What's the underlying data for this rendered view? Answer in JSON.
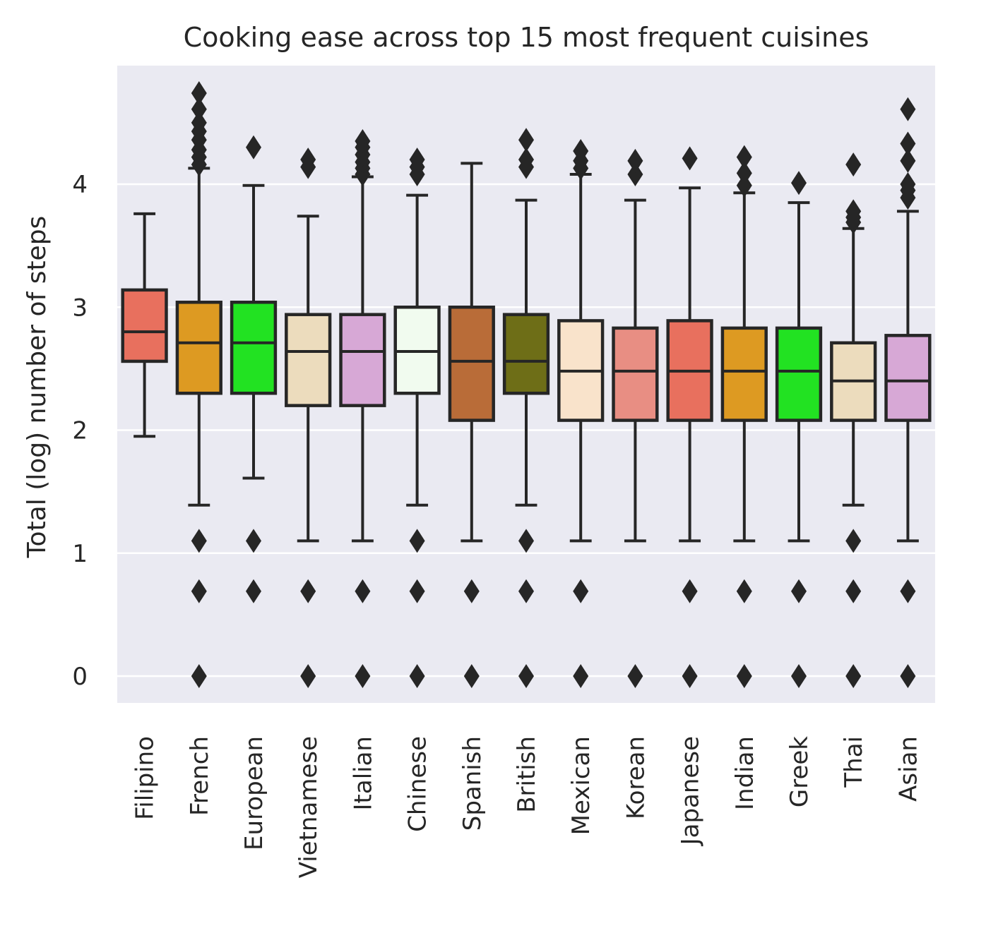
{
  "chart_data": {
    "type": "box",
    "title": "Cooking ease across top 15 most frequent cuisines",
    "xlabel": "",
    "ylabel": "Total (log) number of steps",
    "ylim": [
      -0.22,
      4.95
    ],
    "yticks": [
      0,
      1,
      2,
      3,
      4
    ],
    "grid": true,
    "legend": "none",
    "categories": [
      "Filipino",
      "French",
      "European",
      "Vietnamese",
      "Italian",
      "Chinese",
      "Spanish",
      "British",
      "Mexican",
      "Korean",
      "Japanese",
      "Indian",
      "Greek",
      "Thai",
      "Asian"
    ],
    "boxes": [
      {
        "category": "Filipino",
        "color": "#e8705e",
        "whisker_low": 1.95,
        "q1": 2.56,
        "median": 2.8,
        "q3": 3.14,
        "whisker_high": 3.76,
        "outliers": []
      },
      {
        "category": "French",
        "color": "#dd9a22",
        "whisker_low": 1.39,
        "q1": 2.3,
        "median": 2.71,
        "q3": 3.04,
        "whisker_high": 4.13,
        "outliers": [
          0,
          0.69,
          1.1,
          4.16,
          4.22,
          4.28,
          4.36,
          4.43,
          4.5,
          4.61,
          4.74
        ]
      },
      {
        "category": "European",
        "color": "#22e222",
        "whisker_low": 1.61,
        "q1": 2.3,
        "median": 2.71,
        "q3": 3.04,
        "whisker_high": 3.99,
        "outliers": [
          0.69,
          1.1,
          4.3
        ]
      },
      {
        "category": "Vietnamese",
        "color": "#ecdcbd",
        "whisker_low": 1.1,
        "q1": 2.2,
        "median": 2.64,
        "q3": 2.94,
        "whisker_high": 3.74,
        "outliers": [
          0,
          0.69,
          4.14,
          4.2
        ]
      },
      {
        "category": "Italian",
        "color": "#d7a8d6",
        "whisker_low": 1.1,
        "q1": 2.2,
        "median": 2.64,
        "q3": 2.94,
        "whisker_high": 4.06,
        "outliers": [
          0,
          0.69,
          4.08,
          4.13,
          4.18,
          4.24,
          4.3,
          4.35
        ]
      },
      {
        "category": "Chinese",
        "color": "#f1fbef",
        "whisker_low": 1.39,
        "q1": 2.3,
        "median": 2.64,
        "q3": 3.0,
        "whisker_high": 3.91,
        "outliers": [
          0,
          0.69,
          1.1,
          4.08,
          4.14,
          4.2
        ]
      },
      {
        "category": "Spanish",
        "color": "#b96c38",
        "whisker_low": 1.1,
        "q1": 2.08,
        "median": 2.56,
        "q3": 3.0,
        "whisker_high": 4.17,
        "outliers": [
          0,
          0.69
        ]
      },
      {
        "category": "British",
        "color": "#6e6e17",
        "whisker_low": 1.39,
        "q1": 2.3,
        "median": 2.56,
        "q3": 2.94,
        "whisker_high": 3.87,
        "outliers": [
          0,
          0.69,
          1.1,
          4.14,
          4.2,
          4.36
        ]
      },
      {
        "category": "Mexican",
        "color": "#f9e3cb",
        "whisker_low": 1.1,
        "q1": 2.08,
        "median": 2.48,
        "q3": 2.89,
        "whisker_high": 4.08,
        "outliers": [
          0,
          0.69,
          4.13,
          4.19,
          4.27
        ]
      },
      {
        "category": "Korean",
        "color": "#e88e83",
        "whisker_low": 1.1,
        "q1": 2.08,
        "median": 2.48,
        "q3": 2.83,
        "whisker_high": 3.87,
        "outliers": [
          0,
          4.08,
          4.19
        ]
      },
      {
        "category": "Japanese",
        "color": "#e8705e",
        "whisker_low": 1.1,
        "q1": 2.08,
        "median": 2.48,
        "q3": 2.89,
        "whisker_high": 3.97,
        "outliers": [
          0,
          0.69,
          4.21
        ]
      },
      {
        "category": "Indian",
        "color": "#dd9a22",
        "whisker_low": 1.1,
        "q1": 2.08,
        "median": 2.48,
        "q3": 2.83,
        "whisker_high": 3.93,
        "outliers": [
          0,
          0.69,
          3.99,
          4.09,
          4.22
        ]
      },
      {
        "category": "Greek",
        "color": "#22e222",
        "whisker_low": 1.1,
        "q1": 2.08,
        "median": 2.48,
        "q3": 2.83,
        "whisker_high": 3.85,
        "outliers": [
          0,
          0.69,
          4.01
        ]
      },
      {
        "category": "Thai",
        "color": "#ecdcbd",
        "whisker_low": 1.39,
        "q1": 2.08,
        "median": 2.4,
        "q3": 2.71,
        "whisker_high": 3.64,
        "outliers": [
          0,
          0.69,
          1.1,
          3.69,
          3.73,
          3.78,
          4.16
        ]
      },
      {
        "category": "Asian",
        "color": "#d7a8d6",
        "whisker_low": 1.1,
        "q1": 2.08,
        "median": 2.4,
        "q3": 2.77,
        "whisker_high": 3.78,
        "outliers": [
          0,
          0.69,
          3.89,
          3.95,
          4.0,
          4.19,
          4.33,
          4.61
        ]
      }
    ]
  }
}
